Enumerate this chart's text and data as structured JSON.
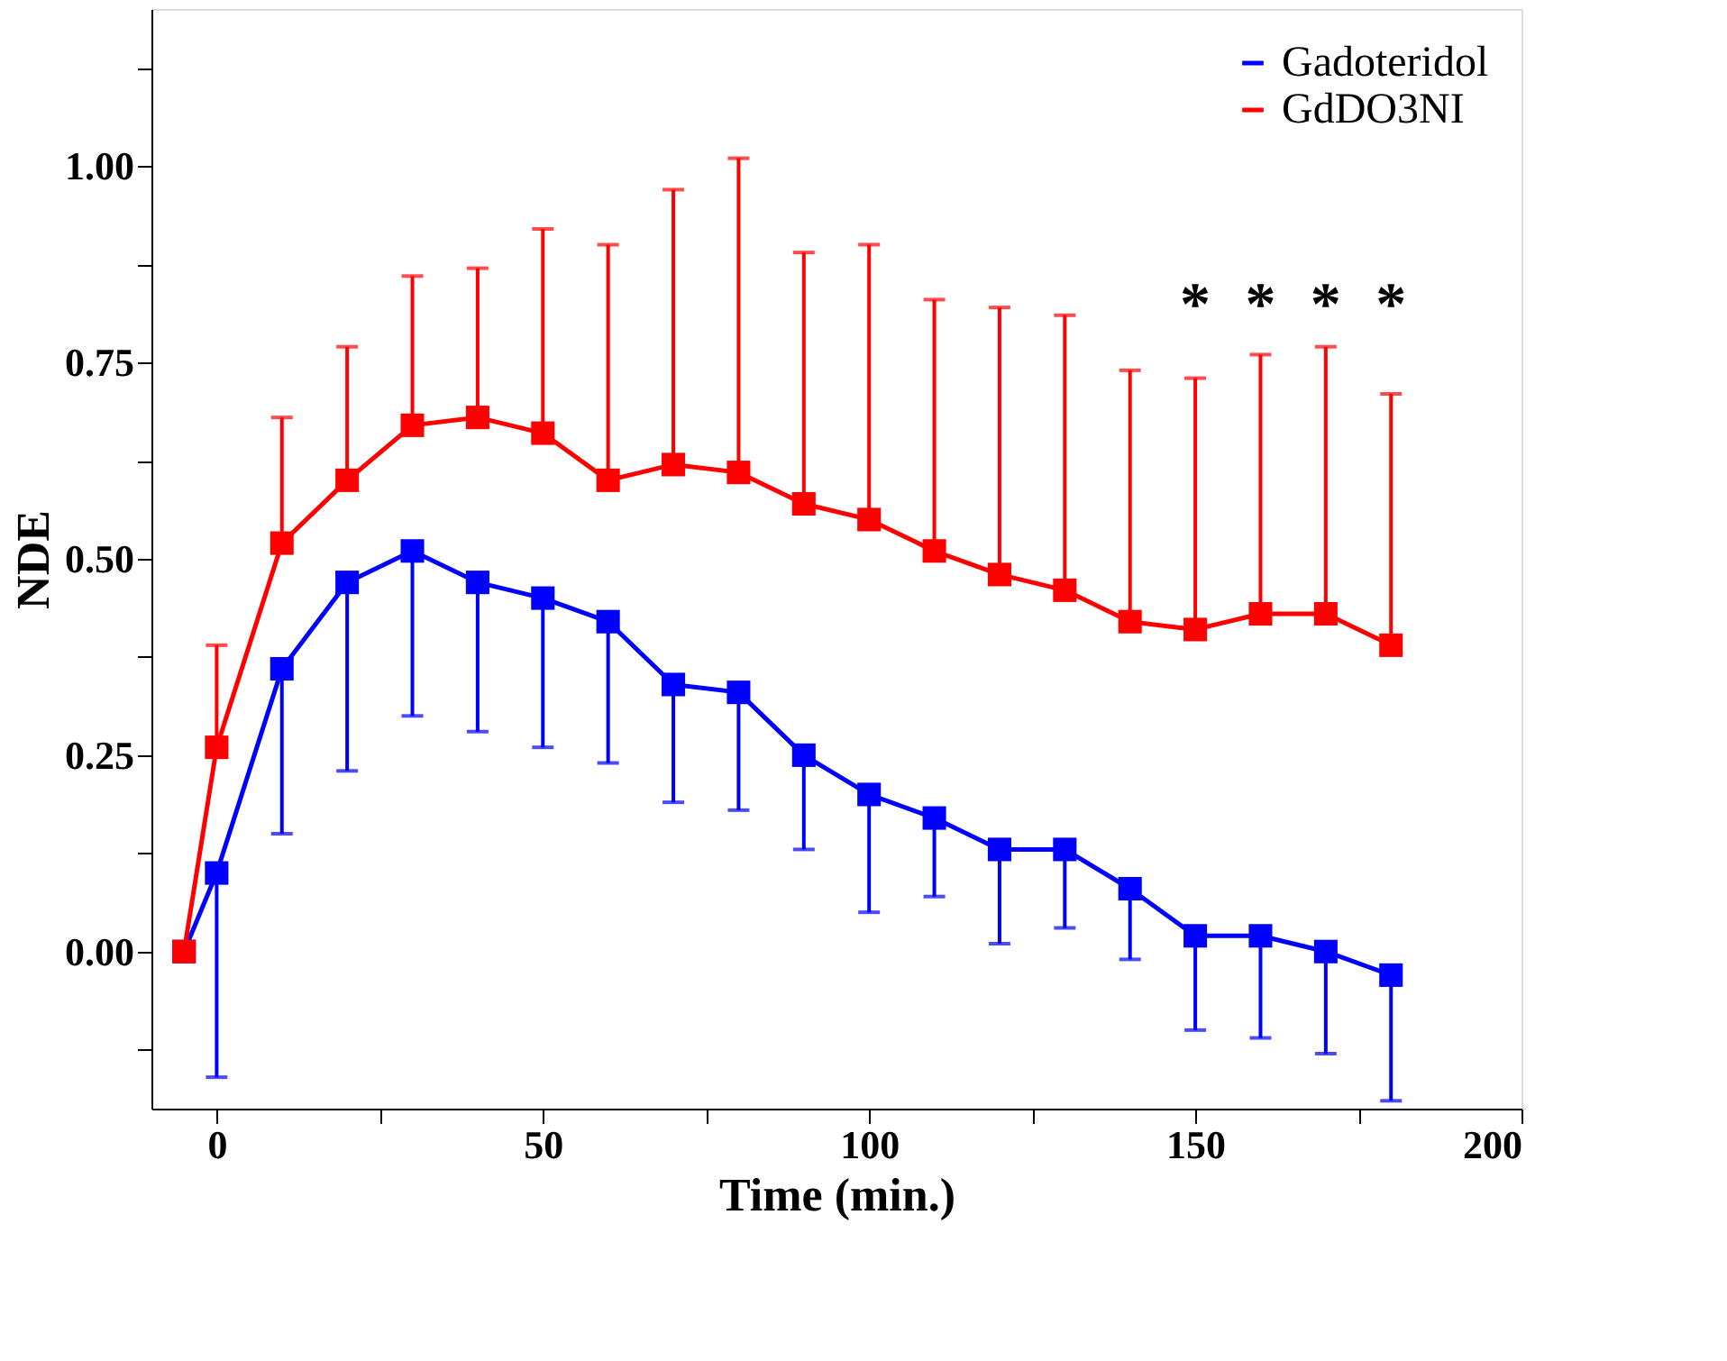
{
  "chart_data": {
    "type": "line",
    "xlabel": "Time (min.)",
    "ylabel": "NDE",
    "xlim": [
      -10,
      200
    ],
    "xticks": [
      0,
      {
        "value": 25,
        "label": null
      },
      50,
      {
        "value": 75,
        "label": null
      },
      100,
      {
        "value": 125,
        "label": null
      },
      150,
      {
        "value": 175,
        "label": null
      },
      200
    ],
    "ylim": [
      -0.2,
      1.2
    ],
    "yticks": [
      {
        "value": -0.125,
        "label": null
      },
      {
        "value": 0,
        "label": "0.00"
      },
      {
        "value": 0.125,
        "label": null
      },
      {
        "value": 0.25,
        "label": "0.25"
      },
      {
        "value": 0.375,
        "label": null
      },
      {
        "value": 0.5,
        "label": "0.50"
      },
      {
        "value": 0.625,
        "label": null
      },
      {
        "value": 0.75,
        "label": "0.75"
      },
      {
        "value": 0.875,
        "label": null
      },
      {
        "value": 1.0,
        "label": "1.00"
      },
      {
        "value": 1.125,
        "label": null
      }
    ],
    "x": [
      -5,
      0,
      10,
      20,
      30,
      40,
      50,
      60,
      70,
      80,
      90,
      100,
      110,
      120,
      130,
      140,
      150,
      160,
      170,
      180
    ],
    "series": [
      {
        "name": "Gadoteridol",
        "color": "#0000ff",
        "values": [
          0,
          0.1,
          0.36,
          0.47,
          0.51,
          0.47,
          0.45,
          0.42,
          0.34,
          0.33,
          0.25,
          0.2,
          0.17,
          0.13,
          0.13,
          0.08,
          0.02,
          0.02,
          0,
          -0.03
        ],
        "errors": [
          null,
          [
            -0.16,
            0.1
          ],
          [
            0.15,
            0.36
          ],
          [
            0.23,
            0.47
          ],
          [
            0.3,
            0.51
          ],
          [
            0.28,
            0.47
          ],
          [
            0.26,
            0.45
          ],
          [
            0.24,
            0.42
          ],
          [
            0.19,
            0.34
          ],
          [
            0.18,
            0.33
          ],
          [
            0.13,
            0.25
          ],
          [
            0.05,
            0.2
          ],
          [
            0.07,
            0.17
          ],
          [
            0.01,
            0.13
          ],
          [
            0.03,
            0.13
          ],
          [
            -0.01,
            0.08
          ],
          [
            -0.1,
            0.02
          ],
          [
            -0.11,
            0.02
          ],
          [
            -0.13,
            0
          ],
          [
            -0.19,
            -0.03
          ]
        ]
      },
      {
        "name": "GdDO3NI",
        "color": "#ff0000",
        "values": [
          0,
          0.26,
          0.52,
          0.6,
          0.67,
          0.68,
          0.66,
          0.6,
          0.62,
          0.61,
          0.57,
          0.55,
          0.51,
          0.48,
          0.46,
          0.42,
          0.41,
          0.43,
          0.43,
          0.39
        ],
        "errors": [
          null,
          [
            0.26,
            0.39
          ],
          [
            0.52,
            0.68
          ],
          [
            0.6,
            0.77
          ],
          [
            0.67,
            0.86
          ],
          [
            0.68,
            0.87
          ],
          [
            0.66,
            0.92
          ],
          [
            0.6,
            0.9
          ],
          [
            0.62,
            0.97
          ],
          [
            0.61,
            1.01
          ],
          [
            0.57,
            0.89
          ],
          [
            0.55,
            0.9
          ],
          [
            0.51,
            0.83
          ],
          [
            0.48,
            0.82
          ],
          [
            0.46,
            0.81
          ],
          [
            0.42,
            0.74
          ],
          [
            0.41,
            0.73
          ],
          [
            0.43,
            0.76
          ],
          [
            0.43,
            0.77
          ],
          [
            0.39,
            0.71
          ]
        ]
      }
    ],
    "annotations": [
      "*",
      "*",
      "*",
      "*"
    ],
    "marker": "square",
    "line_style": "solid",
    "grid": false,
    "legend": "top right"
  }
}
